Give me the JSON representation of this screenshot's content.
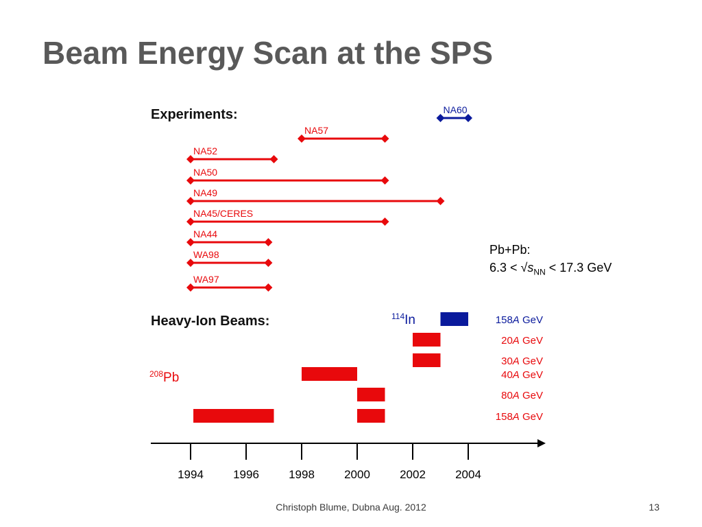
{
  "slide": {
    "title": "Beam Energy Scan at the SPS",
    "footer": "Christoph Blume, Dubna Aug. 2012",
    "page_number": "13"
  },
  "colors": {
    "red": "#e8090c",
    "blue": "#0a1a9c",
    "title_gray": "#595959",
    "axis": "#000000"
  },
  "diagram": {
    "experiments_heading": "Experiments:",
    "beams_heading": "Heavy-Ion Beams:",
    "years_ticks": [
      "1994",
      "1996",
      "1998",
      "2000",
      "2002",
      "2004"
    ],
    "experiments": [
      {
        "name": "NA60",
        "start": 2003.0,
        "end": 2004.0,
        "color": "blue"
      },
      {
        "name": "NA57",
        "start": 1998.0,
        "end": 2001.0,
        "color": "red"
      },
      {
        "name": "NA52",
        "start": 1994.0,
        "end": 1997.0,
        "color": "red"
      },
      {
        "name": "NA50",
        "start": 1994.0,
        "end": 2001.0,
        "color": "red"
      },
      {
        "name": "NA49",
        "start": 1994.0,
        "end": 2003.0,
        "color": "red"
      },
      {
        "name": "NA45/CERES",
        "start": 1994.0,
        "end": 2001.0,
        "color": "red"
      },
      {
        "name": "NA44",
        "start": 1994.0,
        "end": 1996.8,
        "color": "red"
      },
      {
        "name": "WA98",
        "start": 1994.0,
        "end": 1996.8,
        "color": "red"
      },
      {
        "name": "WA97",
        "start": 1994.0,
        "end": 1996.8,
        "color": "red"
      }
    ],
    "beam_rows": [
      {
        "label_prefix": "158",
        "label_suffix": " GeV",
        "color": "blue",
        "bars": [
          {
            "start": 2003.0,
            "end": 2004.0
          }
        ]
      },
      {
        "label_prefix": "20",
        "label_suffix": " GeV",
        "color": "red",
        "bars": [
          {
            "start": 2002.0,
            "end": 2003.0
          }
        ]
      },
      {
        "label_prefix": "30",
        "label_suffix": " GeV",
        "color": "red",
        "bars": [
          {
            "start": 2002.0,
            "end": 2003.0
          }
        ]
      },
      {
        "label_prefix": "40",
        "label_suffix": " GeV",
        "color": "red",
        "bars": [
          {
            "start": 1998.0,
            "end": 2000.0
          }
        ]
      },
      {
        "label_prefix": "80",
        "label_suffix": " GeV",
        "color": "red",
        "bars": [
          {
            "start": 2000.0,
            "end": 2001.0
          }
        ]
      },
      {
        "label_prefix": "158",
        "label_suffix": " GeV",
        "color": "red",
        "bars": [
          {
            "start": 1994.1,
            "end": 1997.0
          },
          {
            "start": 2000.0,
            "end": 2001.0
          }
        ]
      }
    ],
    "energy_unit_italic": "A",
    "pb_label": {
      "mass": "208",
      "element": "Pb"
    },
    "in_label": {
      "mass": "114",
      "element": "In"
    },
    "note": {
      "line1": "Pb+Pb:",
      "line2_prefix": "6.3 < √",
      "line2_var": "s",
      "line2_sub": "NN",
      "line2_suffix": " < 17.3 GeV"
    }
  }
}
